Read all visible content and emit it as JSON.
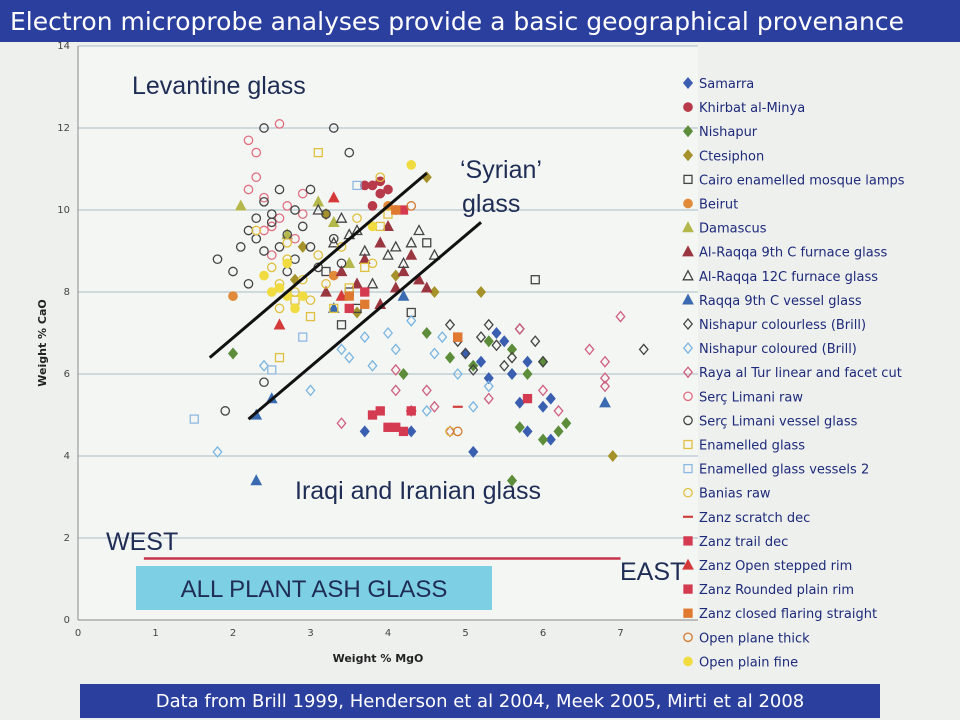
{
  "slide": {
    "title": "Electron microprobe analyses provide a basic geographical provenance",
    "footer": "Data from Brill 1999, Henderson et al 2004, Meek 2005, Mirti et al 2008"
  },
  "chart_data": {
    "type": "scatter",
    "title": "",
    "xlabel": "Weight % MgO",
    "ylabel": "Weight % CaO",
    "xlim": [
      0,
      8
    ],
    "ylim": [
      0,
      14
    ],
    "xticks": [
      "0",
      "1",
      "2",
      "3",
      "4",
      "5",
      "6",
      "7"
    ],
    "yticks": [
      "0",
      "2",
      "4",
      "6",
      "8",
      "10",
      "12",
      "14"
    ],
    "grid": "horizontal",
    "legend_position": "right",
    "annotations": {
      "levantine": "Levantine glass",
      "syrian_1": "‘Syrian’",
      "syrian_2": "glass",
      "iraqi": "Iraqi and Iranian glass",
      "west": "WEST",
      "east": "EAST",
      "plant_ash": "ALL PLANT ASH GLASS"
    },
    "divider_lines": [
      {
        "x": [
          1.7,
          4.5
        ],
        "y": [
          6.4,
          10.9
        ]
      },
      {
        "x": [
          2.2,
          5.2
        ],
        "y": [
          4.9,
          9.7
        ]
      }
    ],
    "east_west_line": {
      "x": [
        0.85,
        7.0
      ],
      "y": [
        1.5,
        1.5
      ]
    },
    "series": [
      {
        "name": "Samarra",
        "marker": "diamond",
        "color": "#3b5fb0",
        "fill": true,
        "points": [
          [
            3.7,
            4.6
          ],
          [
            5.1,
            4.1
          ],
          [
            5.2,
            6.3
          ],
          [
            5.5,
            6.8
          ],
          [
            5.7,
            5.3
          ],
          [
            5.8,
            4.6
          ],
          [
            6.0,
            5.2
          ],
          [
            6.1,
            4.4
          ],
          [
            6.1,
            5.4
          ],
          [
            5.4,
            7.0
          ],
          [
            5.3,
            5.9
          ],
          [
            5.6,
            6.0
          ],
          [
            4.3,
            4.6
          ],
          [
            5.0,
            6.5
          ],
          [
            5.8,
            6.3
          ]
        ]
      },
      {
        "name": "Khirbat al-Minya",
        "marker": "circle",
        "color": "#b83a4b",
        "fill": true,
        "points": [
          [
            3.8,
            10.6
          ],
          [
            3.9,
            10.7
          ],
          [
            4.0,
            10.5
          ],
          [
            3.7,
            10.6
          ],
          [
            3.9,
            10.4
          ],
          [
            4.1,
            10.0
          ],
          [
            3.8,
            10.1
          ]
        ]
      },
      {
        "name": "Nishapur",
        "marker": "diamond",
        "color": "#5d8d3a",
        "fill": true,
        "points": [
          [
            2.0,
            6.5
          ],
          [
            4.2,
            6.0
          ],
          [
            4.8,
            6.4
          ],
          [
            5.1,
            6.2
          ],
          [
            5.3,
            6.8
          ],
          [
            5.6,
            6.6
          ],
          [
            5.8,
            6.0
          ],
          [
            6.0,
            6.3
          ],
          [
            6.2,
            4.6
          ],
          [
            6.3,
            4.8
          ],
          [
            6.0,
            4.4
          ],
          [
            5.6,
            3.4
          ],
          [
            5.7,
            4.7
          ],
          [
            4.5,
            7.0
          ]
        ]
      },
      {
        "name": "Ctesiphon",
        "marker": "diamond",
        "color": "#a5922a",
        "fill": true,
        "points": [
          [
            2.8,
            8.3
          ],
          [
            3.2,
            9.9
          ],
          [
            4.5,
            10.8
          ],
          [
            4.6,
            8.0
          ],
          [
            5.2,
            8.0
          ],
          [
            6.9,
            4.0
          ],
          [
            3.6,
            7.5
          ],
          [
            4.1,
            8.4
          ],
          [
            2.9,
            9.1
          ]
        ]
      },
      {
        "name": "Cairo enamelled mosque lamps",
        "marker": "square",
        "color": "#444444",
        "fill": false,
        "points": [
          [
            5.9,
            8.3
          ],
          [
            4.5,
            9.2
          ],
          [
            3.4,
            7.2
          ],
          [
            3.6,
            7.6
          ],
          [
            4.3,
            7.5
          ],
          [
            3.2,
            8.5
          ],
          [
            3.5,
            8.0
          ]
        ]
      },
      {
        "name": "Beirut",
        "marker": "circle",
        "color": "#e08a3a",
        "fill": true,
        "points": [
          [
            2.0,
            7.9
          ],
          [
            3.3,
            8.4
          ],
          [
            4.0,
            10.1
          ]
        ]
      },
      {
        "name": "Damascus",
        "marker": "triangle",
        "color": "#b4b84a",
        "fill": true,
        "points": [
          [
            2.1,
            10.1
          ],
          [
            3.1,
            10.2
          ],
          [
            3.5,
            8.7
          ],
          [
            2.7,
            9.4
          ],
          [
            3.3,
            9.7
          ]
        ]
      },
      {
        "name": "Al-Raqqa 9th C furnace glass",
        "marker": "triangle",
        "color": "#9a3640",
        "fill": true,
        "points": [
          [
            3.4,
            8.5
          ],
          [
            3.7,
            8.8
          ],
          [
            3.9,
            9.2
          ],
          [
            4.2,
            8.5
          ],
          [
            4.3,
            8.9
          ],
          [
            4.5,
            8.1
          ],
          [
            3.6,
            8.2
          ],
          [
            4.0,
            9.6
          ],
          [
            3.2,
            8.0
          ],
          [
            4.1,
            8.1
          ],
          [
            3.9,
            7.7
          ],
          [
            4.4,
            8.3
          ]
        ]
      },
      {
        "name": "Al-Raqqa 12C furnace glass",
        "marker": "triangle",
        "color": "#444444",
        "fill": false,
        "points": [
          [
            3.1,
            10.0
          ],
          [
            3.4,
            9.8
          ],
          [
            3.6,
            9.5
          ],
          [
            4.1,
            9.1
          ],
          [
            4.2,
            8.7
          ],
          [
            4.4,
            9.5
          ],
          [
            4.6,
            8.9
          ],
          [
            3.8,
            8.2
          ],
          [
            3.3,
            9.2
          ],
          [
            3.5,
            9.4
          ],
          [
            4.0,
            8.9
          ],
          [
            4.3,
            9.2
          ],
          [
            3.7,
            9.0
          ]
        ]
      },
      {
        "name": "Raqqa 9th C vessel glass",
        "marker": "triangle",
        "color": "#3a6bb0",
        "fill": true,
        "points": [
          [
            2.3,
            3.4
          ],
          [
            2.3,
            5.0
          ],
          [
            2.5,
            5.4
          ],
          [
            6.8,
            5.3
          ],
          [
            3.3,
            7.6
          ],
          [
            4.2,
            7.9
          ]
        ]
      },
      {
        "name": "Nishapur colourless (Brill)",
        "marker": "diamond",
        "color": "#444444",
        "fill": false,
        "points": [
          [
            5.0,
            6.5
          ],
          [
            5.2,
            6.9
          ],
          [
            5.4,
            6.7
          ],
          [
            5.6,
            6.4
          ],
          [
            5.7,
            7.1
          ],
          [
            5.9,
            6.8
          ],
          [
            6.0,
            6.3
          ],
          [
            5.3,
            7.2
          ],
          [
            5.1,
            6.1
          ],
          [
            7.3,
            6.6
          ],
          [
            4.9,
            6.8
          ],
          [
            5.5,
            6.2
          ],
          [
            4.8,
            7.2
          ]
        ]
      },
      {
        "name": "Nishapur coloured (Brill)",
        "marker": "diamond",
        "color": "#7ab5e0",
        "fill": false,
        "points": [
          [
            1.8,
            4.1
          ],
          [
            2.4,
            6.2
          ],
          [
            3.0,
            5.6
          ],
          [
            3.4,
            6.6
          ],
          [
            3.7,
            6.9
          ],
          [
            4.0,
            7.0
          ],
          [
            4.3,
            7.3
          ],
          [
            4.6,
            6.5
          ],
          [
            4.9,
            6.0
          ],
          [
            5.1,
            5.2
          ],
          [
            5.3,
            5.7
          ],
          [
            4.5,
            5.1
          ],
          [
            3.8,
            6.2
          ],
          [
            4.1,
            6.6
          ],
          [
            4.7,
            6.9
          ],
          [
            3.5,
            6.4
          ]
        ]
      },
      {
        "name": "Raya al Tur linear and facet cut",
        "marker": "diamond",
        "color": "#d06080",
        "fill": false,
        "points": [
          [
            3.4,
            4.8
          ],
          [
            4.1,
            5.6
          ],
          [
            4.3,
            5.1
          ],
          [
            4.6,
            5.2
          ],
          [
            4.8,
            4.6
          ],
          [
            5.3,
            5.4
          ],
          [
            5.7,
            7.1
          ],
          [
            6.0,
            5.6
          ],
          [
            6.2,
            5.1
          ],
          [
            6.6,
            6.6
          ],
          [
            6.8,
            6.3
          ],
          [
            6.8,
            5.9
          ],
          [
            6.8,
            5.7
          ],
          [
            7.0,
            7.4
          ],
          [
            4.1,
            6.1
          ],
          [
            4.5,
            5.6
          ]
        ]
      },
      {
        "name": "Serç Limani raw",
        "marker": "circle",
        "color": "#e07080",
        "fill": false,
        "points": [
          [
            2.2,
            11.7
          ],
          [
            2.3,
            11.4
          ],
          [
            2.6,
            12.1
          ],
          [
            2.3,
            10.8
          ],
          [
            2.4,
            10.3
          ],
          [
            2.5,
            9.6
          ],
          [
            2.7,
            10.1
          ],
          [
            2.8,
            9.3
          ],
          [
            2.9,
            10.4
          ],
          [
            2.6,
            9.8
          ],
          [
            2.2,
            10.5
          ],
          [
            2.5,
            8.9
          ],
          [
            2.9,
            9.9
          ],
          [
            2.4,
            9.5
          ]
        ]
      },
      {
        "name": "Serç Limani vessel glass",
        "marker": "circle",
        "color": "#444444",
        "fill": false,
        "points": [
          [
            1.8,
            8.8
          ],
          [
            2.0,
            8.5
          ],
          [
            2.1,
            9.1
          ],
          [
            2.2,
            9.5
          ],
          [
            2.3,
            9.3
          ],
          [
            2.4,
            9.0
          ],
          [
            2.4,
            10.2
          ],
          [
            2.5,
            9.7
          ],
          [
            2.6,
            9.1
          ],
          [
            2.6,
            10.5
          ],
          [
            2.7,
            9.4
          ],
          [
            2.8,
            8.8
          ],
          [
            2.9,
            9.6
          ],
          [
            3.0,
            9.1
          ],
          [
            3.1,
            8.6
          ],
          [
            3.2,
            9.9
          ],
          [
            3.3,
            9.3
          ],
          [
            3.4,
            8.7
          ],
          [
            2.4,
            12.0
          ],
          [
            3.3,
            12.0
          ],
          [
            3.5,
            11.4
          ],
          [
            2.7,
            8.5
          ],
          [
            2.2,
            8.2
          ],
          [
            1.9,
            5.1
          ],
          [
            2.4,
            5.8
          ],
          [
            2.5,
            9.9
          ],
          [
            2.8,
            10.0
          ],
          [
            3.0,
            10.5
          ],
          [
            2.3,
            9.8
          ]
        ]
      },
      {
        "name": "Enamelled glass",
        "marker": "square",
        "color": "#e0c040",
        "fill": false,
        "points": [
          [
            3.1,
            11.4
          ],
          [
            3.3,
            7.6
          ],
          [
            3.5,
            8.1
          ],
          [
            3.7,
            8.6
          ],
          [
            2.6,
            6.4
          ],
          [
            2.8,
            7.8
          ],
          [
            3.0,
            7.4
          ],
          [
            3.9,
            9.6
          ],
          [
            4.0,
            9.9
          ]
        ]
      },
      {
        "name": "Enamelled glass vessels 2",
        "marker": "square",
        "color": "#8fb8e0",
        "fill": false,
        "points": [
          [
            1.5,
            4.9
          ],
          [
            3.6,
            10.6
          ],
          [
            2.5,
            6.1
          ],
          [
            2.9,
            6.9
          ]
        ]
      },
      {
        "name": "Banias raw",
        "marker": "circle",
        "color": "#e0c040",
        "fill": false,
        "points": [
          [
            2.3,
            9.5
          ],
          [
            2.5,
            8.6
          ],
          [
            2.6,
            8.2
          ],
          [
            2.7,
            8.8
          ],
          [
            2.8,
            8.0
          ],
          [
            2.9,
            8.3
          ],
          [
            3.0,
            7.8
          ],
          [
            3.2,
            8.2
          ],
          [
            3.4,
            9.1
          ],
          [
            3.6,
            9.8
          ],
          [
            3.8,
            8.7
          ],
          [
            3.9,
            10.8
          ],
          [
            4.8,
            4.6
          ],
          [
            2.6,
            7.6
          ],
          [
            3.1,
            8.9
          ],
          [
            2.7,
            9.2
          ]
        ]
      },
      {
        "name": "Zanz scratch dec",
        "marker": "dash",
        "color": "#d04040",
        "fill": true,
        "points": [
          [
            4.9,
            5.2
          ],
          [
            4.3,
            5.1
          ]
        ]
      },
      {
        "name": "Zanz trail dec",
        "marker": "square",
        "color": "#d43a50",
        "fill": true,
        "points": [
          [
            3.8,
            5.0
          ],
          [
            3.9,
            5.1
          ],
          [
            4.1,
            4.7
          ],
          [
            4.3,
            5.1
          ],
          [
            4.2,
            4.6
          ],
          [
            5.8,
            5.4
          ],
          [
            4.9,
            6.9
          ],
          [
            4.0,
            4.7
          ]
        ]
      },
      {
        "name": "Zanz Open stepped rim",
        "marker": "triangle",
        "color": "#d43a3a",
        "fill": true,
        "points": [
          [
            3.3,
            10.3
          ],
          [
            2.6,
            7.2
          ],
          [
            3.4,
            7.9
          ]
        ]
      },
      {
        "name": "Zanz Rounded plain rim",
        "marker": "square",
        "color": "#d43a50",
        "fill": true,
        "points": [
          [
            3.7,
            8.0
          ],
          [
            4.2,
            10.0
          ],
          [
            3.5,
            7.6
          ]
        ]
      },
      {
        "name": "Zanz closed flaring straight",
        "marker": "square",
        "color": "#e07a30",
        "fill": true,
        "points": [
          [
            3.5,
            7.9
          ],
          [
            3.7,
            7.7
          ],
          [
            4.1,
            10.0
          ],
          [
            4.9,
            6.9
          ]
        ]
      },
      {
        "name": "Open plane thick",
        "marker": "circle",
        "color": "#d47a30",
        "fill": false,
        "points": [
          [
            4.9,
            4.6
          ],
          [
            4.3,
            10.1
          ]
        ]
      },
      {
        "name": "Open plain fine",
        "marker": "circle",
        "color": "#f0dc40",
        "fill": true,
        "points": [
          [
            2.4,
            8.4
          ],
          [
            2.7,
            7.9
          ],
          [
            2.8,
            7.6
          ],
          [
            2.9,
            7.9
          ],
          [
            2.6,
            8.1
          ],
          [
            3.8,
            9.6
          ],
          [
            4.3,
            11.1
          ],
          [
            2.7,
            8.7
          ],
          [
            2.5,
            8.0
          ]
        ]
      }
    ]
  }
}
